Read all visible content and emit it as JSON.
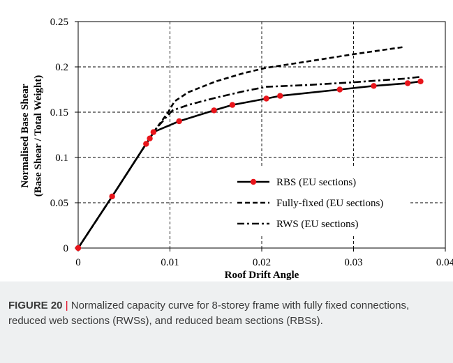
{
  "caption": {
    "label": "FIGURE 20",
    "separator": " | ",
    "text": "Normalized capacity curve for 8-storey frame with fully fixed connections, reduced web sections (RWSs), and reduced beam sections (RBSs)."
  },
  "colors": {
    "marker": "#e8151b",
    "line": "#000000",
    "grid": "#000000",
    "caption_accent": "#e2001a"
  },
  "chart_data": {
    "type": "line",
    "xlabel": "Roof Drift Angle",
    "ylabel_line1": "Normalised Base Shear",
    "ylabel_line2": "(Base Shear / Total Weight)",
    "xlim": [
      0,
      0.04
    ],
    "ylim": [
      0,
      0.25
    ],
    "xticks": [
      0,
      0.01,
      0.02,
      0.03,
      0.04
    ],
    "xtick_labels": [
      "0",
      "0.01",
      "0.02",
      "0.03",
      "0.04"
    ],
    "yticks": [
      0,
      0.05,
      0.1,
      0.15,
      0.2,
      0.25
    ],
    "ytick_labels": [
      "0",
      "0.05",
      "0.1",
      "0.15",
      "0.2",
      "0.25"
    ],
    "grid": "dashed",
    "legend_position": "center-right",
    "series": [
      {
        "name": "RBS (EU sections)",
        "style": "solid-with-markers",
        "x": [
          0,
          0.0037,
          0.0074,
          0.0078,
          0.0082,
          0.011,
          0.0148,
          0.0168,
          0.0205,
          0.022,
          0.0285,
          0.0322,
          0.0359,
          0.0373
        ],
        "y": [
          0,
          0.057,
          0.115,
          0.121,
          0.128,
          0.14,
          0.152,
          0.158,
          0.165,
          0.168,
          0.175,
          0.179,
          0.182,
          0.184
        ]
      },
      {
        "name": "Fully-fixed (EU sections)",
        "style": "dashed",
        "x": [
          0,
          0.0037,
          0.0074,
          0.0085,
          0.0093,
          0.0098,
          0.0105,
          0.012,
          0.015,
          0.018,
          0.0205,
          0.025,
          0.03,
          0.0355
        ],
        "y": [
          0,
          0.057,
          0.115,
          0.132,
          0.143,
          0.15,
          0.162,
          0.172,
          0.184,
          0.193,
          0.199,
          0.206,
          0.214,
          0.222
        ]
      },
      {
        "name": "RWS (EU sections)",
        "style": "dash-dot",
        "x": [
          0,
          0.0037,
          0.0074,
          0.0085,
          0.0093,
          0.0098,
          0.0103,
          0.012,
          0.015,
          0.018,
          0.0205,
          0.025,
          0.03,
          0.0355,
          0.0373
        ],
        "y": [
          0,
          0.057,
          0.115,
          0.132,
          0.141,
          0.147,
          0.152,
          0.158,
          0.166,
          0.173,
          0.178,
          0.18,
          0.183,
          0.187,
          0.189
        ]
      }
    ]
  }
}
